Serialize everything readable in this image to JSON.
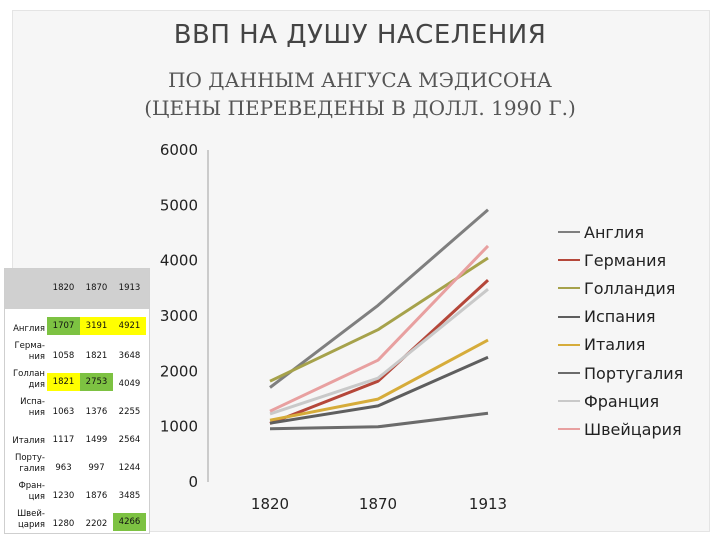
{
  "slide": {
    "title": "ВВП НА ДУШУ НАСЕЛЕНИЯ",
    "subtitle_line1": "ПО ДАННЫМ АНГУСА МЭДИСОНА",
    "subtitle_line2": "(ЦЕНЫ ПЕРЕВЕДЕНЫ В ДОЛЛ. 1990 Г.)"
  },
  "colors": {
    "highlight_green": "#7dc242",
    "highlight_yellow": "#ffff00"
  },
  "chart_data": {
    "type": "line",
    "categories": [
      "1820",
      "1870",
      "1913"
    ],
    "ylim": [
      0,
      6000
    ],
    "yticks": [
      "0",
      "1000",
      "2000",
      "3000",
      "4000",
      "5000",
      "6000"
    ],
    "ytick_values": [
      0,
      1000,
      2000,
      3000,
      4000,
      5000,
      6000
    ],
    "grid": false,
    "legend_position": "right",
    "series": [
      {
        "name": "Англия",
        "color": "#7f7f7f",
        "values": [
          1707,
          3191,
          4921
        ]
      },
      {
        "name": "Германия",
        "color": "#b5473a",
        "values": [
          1058,
          1821,
          3648
        ]
      },
      {
        "name": "Голландия",
        "color": "#a6a24b",
        "values": [
          1821,
          2753,
          4049
        ]
      },
      {
        "name": "Испания",
        "color": "#5e5e5e",
        "values": [
          1063,
          1376,
          2255
        ]
      },
      {
        "name": "Италия",
        "color": "#d6ac3a",
        "values": [
          1117,
          1499,
          2564
        ]
      },
      {
        "name": "Португалия",
        "color": "#6b6b6b",
        "values": [
          963,
          997,
          1244
        ]
      },
      {
        "name": "Франция",
        "color": "#c9c9c9",
        "values": [
          1230,
          1876,
          3485
        ]
      },
      {
        "name": "Швейцария",
        "color": "#e8a0a0",
        "values": [
          1280,
          2202,
          4266
        ]
      }
    ]
  },
  "table": {
    "headers": [
      "1820",
      "1870",
      "1913"
    ],
    "rows": [
      {
        "name": "Англия",
        "values": [
          "1707",
          "3191",
          "4921"
        ],
        "highlight": [
          "green",
          "yellow",
          "yellow"
        ]
      },
      {
        "name": "Герма- ния",
        "values": [
          "1058",
          "1821",
          "3648"
        ],
        "highlight": [
          "",
          "",
          ""
        ]
      },
      {
        "name": "Голлан дия",
        "values": [
          "1821",
          "2753",
          "4049"
        ],
        "highlight": [
          "yellow",
          "green",
          ""
        ]
      },
      {
        "name": "Испа- ния",
        "values": [
          "1063",
          "1376",
          "2255"
        ],
        "highlight": [
          "",
          "",
          ""
        ]
      },
      {
        "name": "Италия",
        "values": [
          "1117",
          "1499",
          "2564"
        ],
        "highlight": [
          "",
          "",
          ""
        ]
      },
      {
        "name": "Порту- галия",
        "values": [
          "963",
          "997",
          "1244"
        ],
        "highlight": [
          "",
          "",
          ""
        ]
      },
      {
        "name": "Фран- ция",
        "values": [
          "1230",
          "1876",
          "3485"
        ],
        "highlight": [
          "",
          "",
          ""
        ]
      },
      {
        "name": "Швей- цария",
        "values": [
          "1280",
          "2202",
          "4266"
        ],
        "highlight": [
          "",
          "",
          "green"
        ]
      }
    ]
  }
}
